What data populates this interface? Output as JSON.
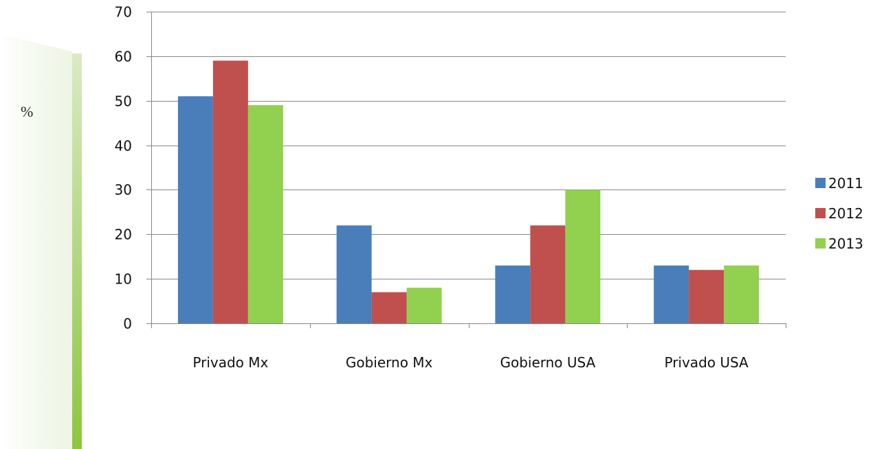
{
  "unit_label": "%",
  "colors": {
    "accent_bar_top": "#dbe9c4",
    "accent_bar_bottom": "#8dc63f",
    "gridline": "#868686",
    "axis": "#868686"
  },
  "chart_data": {
    "type": "bar",
    "categories": [
      "Privado Mx",
      "Gobierno Mx",
      "Gobierno USA",
      "Privado USA"
    ],
    "series": [
      {
        "name": "2011",
        "color": "#4a7ebb",
        "values": [
          51,
          22,
          13,
          13
        ]
      },
      {
        "name": "2012",
        "color": "#c0504d",
        "values": [
          59,
          7,
          22,
          12
        ]
      },
      {
        "name": "2013",
        "color": "#92d050",
        "values": [
          49,
          8,
          30,
          13
        ]
      }
    ],
    "title": "",
    "xlabel": "",
    "ylabel": "",
    "ylim": [
      0,
      70
    ],
    "yticks": [
      "0",
      "10",
      "20",
      "30",
      "40",
      "50",
      "60",
      "70"
    ],
    "grid": true,
    "legend_position": "right"
  }
}
